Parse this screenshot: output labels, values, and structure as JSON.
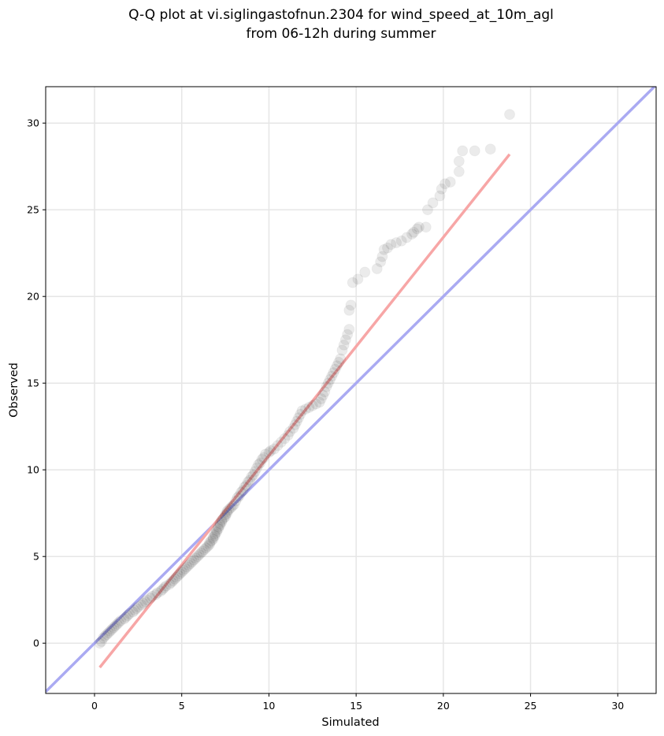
{
  "chart_data": {
    "type": "scatter",
    "title_lines": [
      "Q-Q plot at vi.siglingastofnun.2304 for wind_speed_at_10m_agl",
      "from 06-12h during summer"
    ],
    "xlabel": "Simulated",
    "ylabel": "Observed",
    "xlim": [
      -2.8,
      32.2
    ],
    "ylim": [
      -2.9,
      32.1
    ],
    "xticks": [
      0,
      5,
      10,
      15,
      20,
      25,
      30
    ],
    "yticks": [
      0,
      5,
      10,
      15,
      20,
      25,
      30
    ],
    "grid": true,
    "legend": "none",
    "colors": {
      "identity_line": "#aaaaf2",
      "fit_line": "#f7a6a6",
      "points": "#000000"
    },
    "identity_line": {
      "x": [
        -2.8,
        32.2
      ],
      "y": [
        -2.8,
        32.2
      ]
    },
    "fit_line": {
      "x": [
        0.3,
        23.8
      ],
      "y": [
        -1.4,
        28.2
      ]
    },
    "series": [
      {
        "values": [
          [
            0.3,
            0.0
          ],
          [
            0.4,
            0.1
          ],
          [
            0.5,
            0.3
          ],
          [
            0.6,
            0.4
          ],
          [
            0.7,
            0.5
          ],
          [
            0.8,
            0.6
          ],
          [
            0.9,
            0.7
          ],
          [
            1.0,
            0.8
          ],
          [
            1.1,
            0.9
          ],
          [
            1.2,
            1.0
          ],
          [
            1.3,
            1.1
          ],
          [
            1.4,
            1.2
          ],
          [
            1.5,
            1.3
          ],
          [
            1.7,
            1.4
          ],
          [
            1.8,
            1.5
          ],
          [
            1.9,
            1.6
          ],
          [
            2.0,
            1.7
          ],
          [
            2.2,
            1.8
          ],
          [
            2.3,
            1.9
          ],
          [
            2.4,
            2.0
          ],
          [
            2.5,
            2.1
          ],
          [
            2.7,
            2.2
          ],
          [
            2.8,
            2.3
          ],
          [
            2.9,
            2.4
          ],
          [
            3.0,
            2.5
          ],
          [
            3.2,
            2.6
          ],
          [
            3.3,
            2.7
          ],
          [
            3.5,
            2.8
          ],
          [
            3.6,
            2.9
          ],
          [
            3.8,
            3.0
          ],
          [
            3.9,
            3.1
          ],
          [
            4.0,
            3.2
          ],
          [
            4.1,
            3.3
          ],
          [
            4.3,
            3.4
          ],
          [
            4.4,
            3.5
          ],
          [
            4.5,
            3.6
          ],
          [
            4.6,
            3.7
          ],
          [
            4.7,
            3.8
          ],
          [
            4.8,
            3.9
          ],
          [
            4.9,
            4.0
          ],
          [
            5.0,
            4.1
          ],
          [
            5.1,
            4.2
          ],
          [
            5.2,
            4.3
          ],
          [
            5.3,
            4.4
          ],
          [
            5.4,
            4.5
          ],
          [
            5.5,
            4.6
          ],
          [
            5.6,
            4.7
          ],
          [
            5.7,
            4.8
          ],
          [
            5.8,
            4.9
          ],
          [
            5.9,
            5.0
          ],
          [
            6.0,
            5.1
          ],
          [
            6.1,
            5.2
          ],
          [
            6.2,
            5.3
          ],
          [
            6.3,
            5.4
          ],
          [
            6.4,
            5.5
          ],
          [
            6.5,
            5.6
          ],
          [
            6.6,
            5.7
          ],
          [
            6.6,
            5.8
          ],
          [
            6.7,
            5.9
          ],
          [
            6.8,
            6.0
          ],
          [
            6.8,
            6.1
          ],
          [
            6.9,
            6.2
          ],
          [
            6.9,
            6.3
          ],
          [
            7.0,
            6.4
          ],
          [
            7.0,
            6.5
          ],
          [
            7.1,
            6.6
          ],
          [
            7.1,
            6.7
          ],
          [
            7.2,
            6.8
          ],
          [
            7.2,
            6.9
          ],
          [
            7.3,
            7.0
          ],
          [
            7.3,
            7.1
          ],
          [
            7.4,
            7.2
          ],
          [
            7.5,
            7.3
          ],
          [
            7.5,
            7.4
          ],
          [
            7.6,
            7.5
          ],
          [
            7.6,
            7.6
          ],
          [
            7.7,
            7.7
          ],
          [
            7.8,
            7.8
          ],
          [
            7.9,
            7.9
          ],
          [
            8.0,
            8.0
          ],
          [
            8.1,
            8.2
          ],
          [
            8.2,
            8.4
          ],
          [
            8.3,
            8.5
          ],
          [
            8.4,
            8.7
          ],
          [
            8.5,
            8.8
          ],
          [
            8.6,
            9.0
          ],
          [
            8.7,
            9.1
          ],
          [
            8.8,
            9.3
          ],
          [
            8.9,
            9.4
          ],
          [
            9.0,
            9.6
          ],
          [
            9.1,
            9.7
          ],
          [
            9.2,
            9.9
          ],
          [
            9.3,
            10.1
          ],
          [
            9.4,
            10.3
          ],
          [
            9.5,
            10.4
          ],
          [
            9.6,
            10.6
          ],
          [
            9.7,
            10.7
          ],
          [
            9.8,
            10.9
          ],
          [
            10.0,
            11.0
          ],
          [
            10.1,
            11.1
          ],
          [
            10.3,
            11.2
          ],
          [
            10.5,
            11.4
          ],
          [
            10.7,
            11.6
          ],
          [
            10.9,
            11.8
          ],
          [
            11.1,
            12.0
          ],
          [
            11.2,
            12.2
          ],
          [
            11.4,
            12.4
          ],
          [
            11.5,
            12.6
          ],
          [
            11.6,
            12.8
          ],
          [
            11.7,
            13.0
          ],
          [
            11.8,
            13.2
          ],
          [
            11.9,
            13.4
          ],
          [
            12.1,
            13.5
          ],
          [
            12.3,
            13.6
          ],
          [
            12.5,
            13.7
          ],
          [
            12.7,
            13.8
          ],
          [
            12.9,
            13.9
          ],
          [
            13.0,
            14.1
          ],
          [
            13.1,
            14.3
          ],
          [
            13.2,
            14.5
          ],
          [
            13.3,
            14.8
          ],
          [
            13.4,
            15.0
          ],
          [
            13.5,
            15.2
          ],
          [
            13.6,
            15.4
          ],
          [
            13.7,
            15.6
          ],
          [
            13.8,
            15.8
          ],
          [
            13.9,
            16.0
          ],
          [
            14.0,
            16.2
          ],
          [
            14.1,
            16.4
          ],
          [
            14.2,
            16.9
          ],
          [
            14.3,
            17.2
          ],
          [
            14.4,
            17.5
          ],
          [
            14.5,
            17.8
          ],
          [
            14.6,
            18.1
          ],
          [
            14.6,
            19.2
          ],
          [
            14.7,
            19.5
          ],
          [
            14.8,
            20.8
          ],
          [
            15.1,
            21.0
          ],
          [
            15.5,
            21.4
          ],
          [
            16.2,
            21.6
          ],
          [
            16.4,
            22.0
          ],
          [
            16.5,
            22.3
          ],
          [
            16.6,
            22.7
          ],
          [
            16.8,
            22.8
          ],
          [
            17.0,
            23.0
          ],
          [
            17.3,
            23.1
          ],
          [
            17.6,
            23.2
          ],
          [
            17.9,
            23.4
          ],
          [
            18.2,
            23.6
          ],
          [
            18.3,
            23.7
          ],
          [
            18.5,
            23.9
          ],
          [
            18.6,
            24.0
          ],
          [
            19.0,
            24.0
          ],
          [
            19.1,
            25.0
          ],
          [
            19.4,
            25.4
          ],
          [
            19.8,
            25.8
          ],
          [
            19.9,
            26.2
          ],
          [
            20.1,
            26.5
          ],
          [
            20.4,
            26.6
          ],
          [
            20.9,
            27.2
          ],
          [
            20.9,
            27.8
          ],
          [
            21.1,
            28.4
          ],
          [
            21.8,
            28.4
          ],
          [
            22.7,
            28.5
          ],
          [
            23.8,
            30.5
          ]
        ]
      }
    ]
  }
}
